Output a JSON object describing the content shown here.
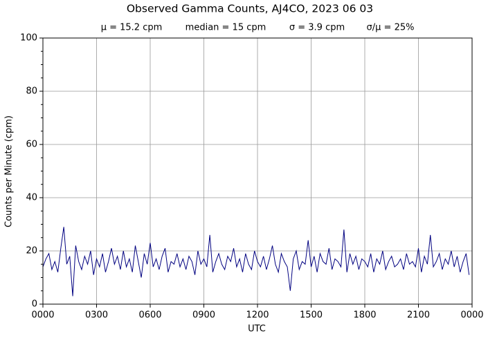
{
  "chart_data": {
    "type": "line",
    "title": "Observed Gamma Counts, AJ4CO, 2023 06 03",
    "stats": [
      "μ = 15.2 cpm",
      "median = 15 cpm",
      "σ = 3.9 cpm",
      "σ/μ = 25%"
    ],
    "xlabel": "UTC",
    "ylabel": "Counts per Minute (cpm)",
    "xlim": [
      0,
      1440
    ],
    "ylim": [
      0,
      100
    ],
    "xticks": [
      {
        "value": 0,
        "label": "0000"
      },
      {
        "value": 180,
        "label": "0300"
      },
      {
        "value": 360,
        "label": "0600"
      },
      {
        "value": 540,
        "label": "0900"
      },
      {
        "value": 720,
        "label": "1200"
      },
      {
        "value": 900,
        "label": "1500"
      },
      {
        "value": 1080,
        "label": "1800"
      },
      {
        "value": 1260,
        "label": "2100"
      },
      {
        "value": 1440,
        "label": "0000"
      }
    ],
    "yticks": [
      0,
      20,
      40,
      60,
      80,
      100
    ],
    "yminorticks": [
      5,
      10,
      15,
      25,
      30,
      35,
      45,
      50,
      55,
      65,
      70,
      75,
      85,
      90,
      95
    ],
    "grid": true,
    "x": [
      0,
      10,
      20,
      30,
      40,
      50,
      60,
      70,
      80,
      90,
      100,
      110,
      120,
      130,
      140,
      150,
      160,
      170,
      180,
      190,
      200,
      210,
      220,
      230,
      240,
      250,
      260,
      270,
      280,
      290,
      300,
      310,
      320,
      330,
      340,
      350,
      360,
      370,
      380,
      390,
      400,
      410,
      420,
      430,
      440,
      450,
      460,
      470,
      480,
      490,
      500,
      510,
      520,
      530,
      540,
      550,
      560,
      570,
      580,
      590,
      600,
      610,
      620,
      630,
      640,
      650,
      660,
      670,
      680,
      690,
      700,
      710,
      720,
      730,
      740,
      750,
      760,
      770,
      780,
      790,
      800,
      810,
      820,
      830,
      840,
      850,
      860,
      870,
      880,
      890,
      900,
      910,
      920,
      930,
      940,
      950,
      960,
      970,
      980,
      990,
      1000,
      1010,
      1020,
      1030,
      1040,
      1050,
      1060,
      1070,
      1080,
      1090,
      1100,
      1110,
      1120,
      1130,
      1140,
      1150,
      1160,
      1170,
      1180,
      1190,
      1200,
      1210,
      1220,
      1230,
      1240,
      1250,
      1260,
      1270,
      1280,
      1290,
      1300,
      1310,
      1320,
      1330,
      1340,
      1350,
      1360,
      1370,
      1380,
      1390,
      1400,
      1410,
      1420,
      1430
    ],
    "series": [
      {
        "color": "#000080",
        "values": [
          14,
          17,
          19,
          13,
          16,
          12,
          21,
          29,
          15,
          18,
          3,
          22,
          16,
          13,
          18,
          15,
          20,
          11,
          17,
          14,
          19,
          12,
          16,
          21,
          15,
          18,
          13,
          20,
          14,
          17,
          12,
          22,
          16,
          10,
          19,
          15,
          23,
          14,
          17,
          13,
          18,
          21,
          12,
          16,
          15,
          19,
          14,
          17,
          13,
          18,
          16,
          11,
          20,
          15,
          17,
          14,
          26,
          12,
          16,
          19,
          15,
          13,
          18,
          16,
          21,
          14,
          17,
          12,
          19,
          15,
          13,
          20,
          16,
          14,
          18,
          13,
          17,
          22,
          15,
          12,
          19,
          16,
          14,
          5,
          17,
          20,
          13,
          16,
          15,
          24,
          14,
          18,
          12,
          19,
          16,
          15,
          21,
          13,
          17,
          16,
          14,
          28,
          12,
          19,
          15,
          18,
          13,
          17,
          16,
          14,
          19,
          12,
          17,
          15,
          20,
          13,
          16,
          18,
          14,
          15,
          17,
          13,
          19,
          15,
          16,
          14,
          21,
          12,
          18,
          15,
          26,
          14,
          16,
          19,
          13,
          17,
          15,
          20,
          14,
          18,
          12,
          16,
          19,
          11
        ]
      }
    ]
  }
}
